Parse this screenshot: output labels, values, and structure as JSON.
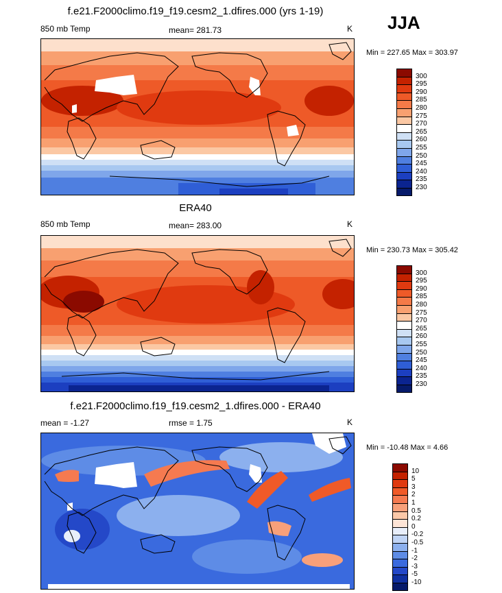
{
  "season": "JJA",
  "panels": [
    {
      "title": "f.e21.F2000climo.f19_f19.cesm2_1.dfires.000 (yrs 1-19)",
      "left_label": "850 mb Temp",
      "center_label": "mean= 281.73",
      "unit": "K",
      "minmax": "Min = 227.65 Max = 303.97",
      "colorbar": {
        "levels": [
          "300",
          "295",
          "290",
          "285",
          "280",
          "275",
          "270",
          "265",
          "260",
          "255",
          "250",
          "245",
          "240",
          "235",
          "230"
        ],
        "colors": [
          "#8b0a00",
          "#c42200",
          "#e03a10",
          "#ee5a28",
          "#f47a48",
          "#f8a070",
          "#fbc8a4",
          "#ffffff",
          "#cfe0f5",
          "#a8c8f0",
          "#7fa6ea",
          "#4f7fe0",
          "#2f5ed6",
          "#1c3fc0",
          "#0b2490",
          "#061a6a"
        ]
      }
    },
    {
      "title": "ERA40",
      "left_label": "850 mb Temp",
      "center_label": "mean= 283.00",
      "unit": "K",
      "minmax": "Min = 230.73 Max = 305.42",
      "colorbar": {
        "levels": [
          "300",
          "295",
          "290",
          "285",
          "280",
          "275",
          "270",
          "265",
          "260",
          "255",
          "250",
          "245",
          "240",
          "235",
          "230"
        ],
        "colors": [
          "#8b0a00",
          "#c42200",
          "#e03a10",
          "#ee5a28",
          "#f47a48",
          "#f8a070",
          "#fbc8a4",
          "#ffffff",
          "#cfe0f5",
          "#a8c8f0",
          "#7fa6ea",
          "#4f7fe0",
          "#2f5ed6",
          "#1c3fc0",
          "#0b2490",
          "#061a6a"
        ]
      }
    },
    {
      "title": "f.e21.F2000climo.f19_f19.cesm2_1.dfires.000 - ERA40",
      "left_label": "mean =  -1.27",
      "center_label": "rmse =   1.75",
      "unit": "K",
      "minmax": "Min = -10.48 Max =   4.66",
      "colorbar": {
        "levels": [
          "10",
          "5",
          "3",
          "2",
          "1",
          "0.5",
          "0.2",
          "0",
          "-0.2",
          "-0.5",
          "-1",
          "-2",
          "-3",
          "-5",
          "-10"
        ],
        "colors": [
          "#8b0a00",
          "#c42200",
          "#e03a10",
          "#f05a28",
          "#f57a50",
          "#f8a07a",
          "#fbc8a8",
          "#fde4d6",
          "#e8eefa",
          "#c0d4f5",
          "#8cb0ee",
          "#5e8ce6",
          "#3a6ade",
          "#2448c8",
          "#1030a0",
          "#061a6a"
        ]
      }
    }
  ]
}
